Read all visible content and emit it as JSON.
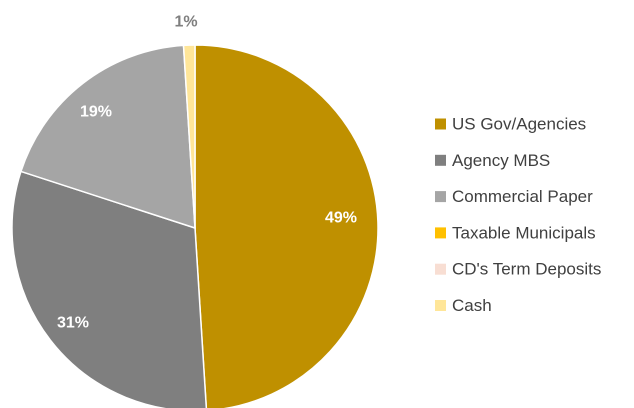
{
  "chart_data": {
    "type": "pie",
    "title": "",
    "start_angle_deg": 0,
    "direction": "clockwise",
    "legend_position": "right",
    "slices": [
      {
        "label": "US Gov/Agencies",
        "value": 49,
        "display": "49%",
        "color": "#bf9000",
        "label_color": "#ffffff"
      },
      {
        "label": "Agency MBS",
        "value": 31,
        "display": "31%",
        "color": "#7f7f7f",
        "label_color": "#ffffff"
      },
      {
        "label": "Commercial Paper",
        "value": 19,
        "display": "19%",
        "color": "#a5a5a5",
        "label_color": "#ffffff"
      },
      {
        "label": "Taxable Municipals",
        "value": 0,
        "display": "",
        "color": "#ffc000",
        "label_color": "#ffffff"
      },
      {
        "label": "CD's Term Deposits",
        "value": 0,
        "display": "",
        "color": "#f8ded3",
        "label_color": "#ffffff"
      },
      {
        "label": "Cash",
        "value": 1,
        "display": "1%",
        "color": "#ffe699",
        "label_color": "#7f7f7f"
      }
    ]
  }
}
